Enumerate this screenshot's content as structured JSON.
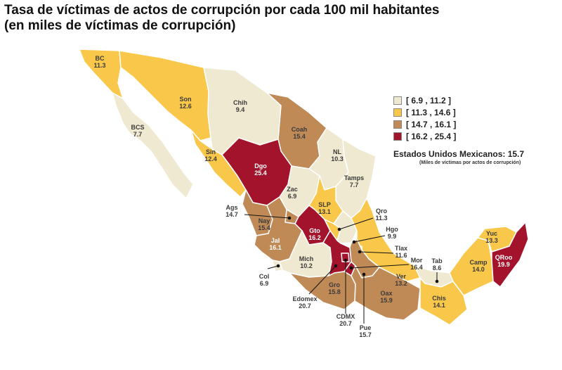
{
  "title": {
    "line1": "Tasa de víctimas de actos de corrupción por cada 100 mil habitantes",
    "line2": "(en miles de víctimas de corrupción)"
  },
  "colors": {
    "bin1": "#efe9d2",
    "bin2": "#f9c74a",
    "bin3": "#c08a57",
    "bin4": "#a3142c",
    "border": "#ffffff"
  },
  "legend": [
    {
      "label": "[  6.9 , 11.2 ]",
      "color": "#efe9d2"
    },
    {
      "label": "[ 11.3 , 14.6 ]",
      "color": "#f9c74a"
    },
    {
      "label": "[ 14.7 , 16.1 ]",
      "color": "#c08a57"
    },
    {
      "label": "[ 16.2 , 25.4 ]",
      "color": "#a3142c"
    }
  ],
  "national": {
    "label": "Estados Unidos Mexicanos:  15.7",
    "note": "(Miles de víctimas por actos de corrupción)"
  },
  "states": [
    {
      "abbr": "BC",
      "value": "11.3"
    },
    {
      "abbr": "BCS",
      "value": "7.7"
    },
    {
      "abbr": "Son",
      "value": "12.6"
    },
    {
      "abbr": "Chih",
      "value": "9.4"
    },
    {
      "abbr": "Coah",
      "value": "15.4"
    },
    {
      "abbr": "NL",
      "value": "10.3"
    },
    {
      "abbr": "Tamps",
      "value": "7.7"
    },
    {
      "abbr": "Sin",
      "value": "12.4"
    },
    {
      "abbr": "Dgo",
      "value": "25.4"
    },
    {
      "abbr": "Zac",
      "value": "6.9"
    },
    {
      "abbr": "SLP",
      "value": "13.1"
    },
    {
      "abbr": "Ags",
      "value": "14.7"
    },
    {
      "abbr": "Nay",
      "value": "15.4"
    },
    {
      "abbr": "Jal",
      "value": "16.1"
    },
    {
      "abbr": "Gto",
      "value": "16.2"
    },
    {
      "abbr": "Qro",
      "value": "11.3"
    },
    {
      "abbr": "Hgo",
      "value": "9.9"
    },
    {
      "abbr": "Tlax",
      "value": "11.6"
    },
    {
      "abbr": "Col",
      "value": "6.9"
    },
    {
      "abbr": "Mich",
      "value": "10.2"
    },
    {
      "abbr": "Edomex",
      "value": "20.7"
    },
    {
      "abbr": "CDMX",
      "value": "20.7"
    },
    {
      "abbr": "Mor",
      "value": "16.4"
    },
    {
      "abbr": "Pue",
      "value": "15.7"
    },
    {
      "abbr": "Gro",
      "value": "15.8"
    },
    {
      "abbr": "Oax",
      "value": "15.9"
    },
    {
      "abbr": "Ver",
      "value": "13.2"
    },
    {
      "abbr": "Tab",
      "value": "8.6"
    },
    {
      "abbr": "Chis",
      "value": "14.1"
    },
    {
      "abbr": "Camp",
      "value": "14.0"
    },
    {
      "abbr": "Yuc",
      "value": "13.3"
    },
    {
      "abbr": "QRoo",
      "value": "19.9"
    }
  ]
}
